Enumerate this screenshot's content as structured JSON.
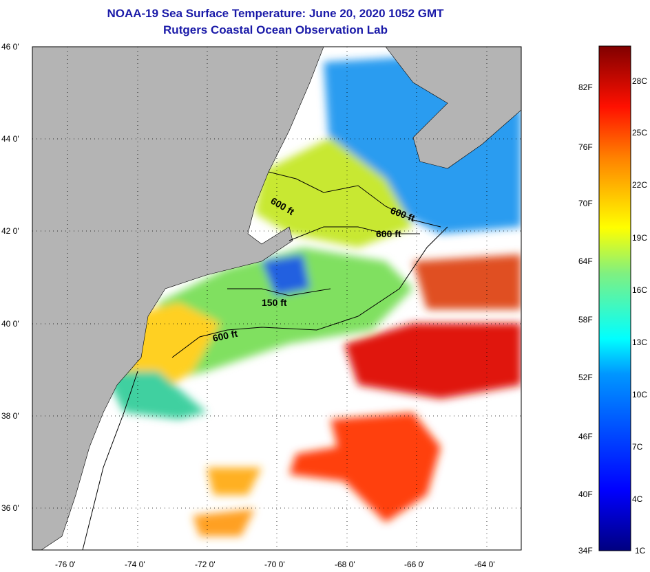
{
  "title": {
    "line1": "NOAA-19 Sea Surface Temperature:  June 20, 2020 1052 GMT",
    "line2": "Rutgers Coastal Ocean Observation Lab"
  },
  "map": {
    "lon_range": [
      -77,
      -63
    ],
    "lat_range": [
      35.1,
      46
    ],
    "lon_ticks": [
      "-76 0'",
      "-74 0'",
      "-72 0'",
      "-70 0'",
      "-68 0'",
      "-66 0'",
      "-64 0'"
    ],
    "lon_tick_values": [
      -76,
      -74,
      -72,
      -70,
      -68,
      -66,
      -64
    ],
    "lat_ticks": [
      "46 0'",
      "44 0'",
      "42 0'",
      "40 0'",
      "38 0'",
      "36 0'"
    ],
    "lat_tick_values": [
      46,
      44,
      42,
      40,
      38,
      36
    ],
    "contour_labels": [
      "600 ft",
      "600 ft",
      "600 ft",
      "150 ft",
      "600 ft"
    ],
    "colors": {
      "land": "#b4b4b4",
      "cloud": "#ffffff"
    }
  },
  "colorbar": {
    "fahrenheit": [
      "82F",
      "76F",
      "70F",
      "64F",
      "58F",
      "52F",
      "46F",
      "40F",
      "34F"
    ],
    "celsius": [
      "28C",
      "25C",
      "22C",
      "19C",
      "16C",
      "13C",
      "10C",
      "7C",
      "4C",
      "1C"
    ],
    "range_c": [
      1,
      30
    ]
  }
}
